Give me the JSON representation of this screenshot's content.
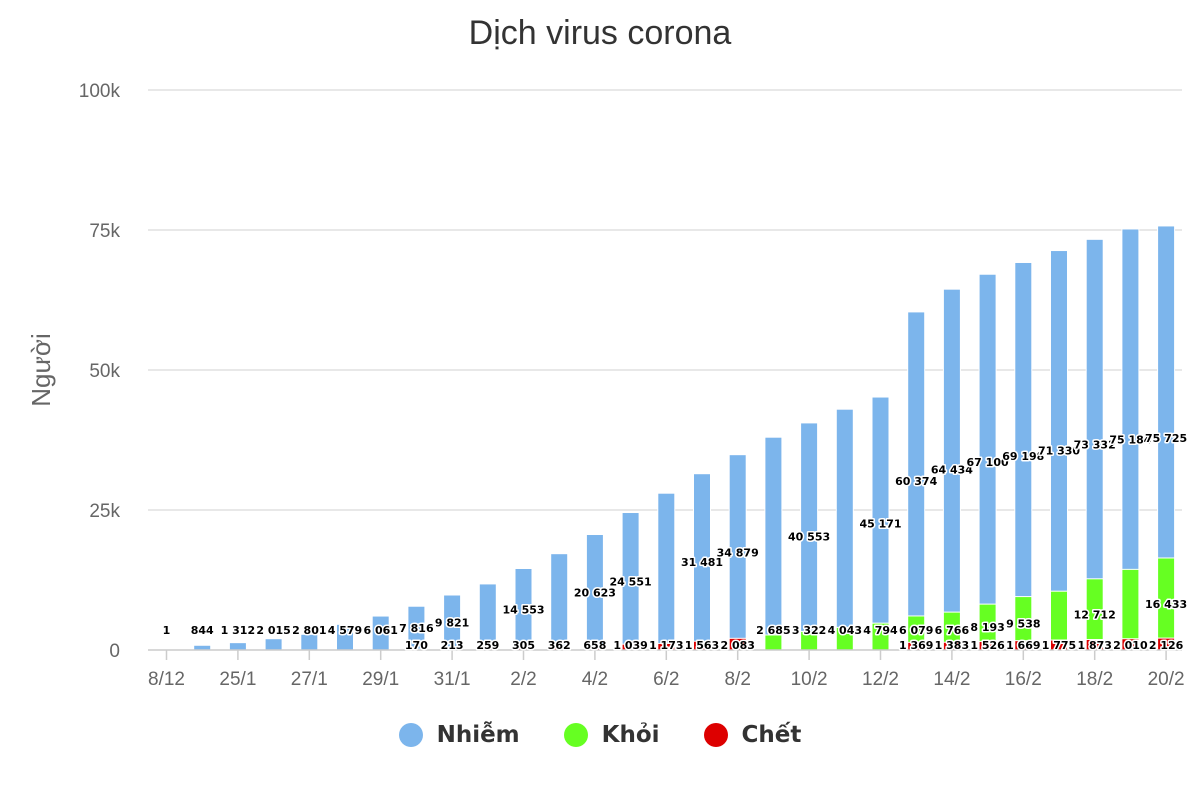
{
  "chart_data": {
    "type": "bar",
    "stacked": true,
    "title": "Dịch virus corona",
    "ylabel": "Người",
    "xlabel": "",
    "ylim": [
      0,
      100000
    ],
    "y_ticks": [
      {
        "value": 0,
        "label": "0"
      },
      {
        "value": 25000,
        "label": "25k"
      },
      {
        "value": 50000,
        "label": "50k"
      },
      {
        "value": 75000,
        "label": "75k"
      },
      {
        "value": 100000,
        "label": "100k"
      }
    ],
    "x_tick_labels": [
      "8/12",
      "25/1",
      "27/1",
      "29/1",
      "31/1",
      "2/2",
      "4/2",
      "6/2",
      "8/2",
      "10/2",
      "12/2",
      "14/2",
      "16/2",
      "18/2",
      "20/2"
    ],
    "legend_position": "bottom",
    "grid": true,
    "series": [
      {
        "name": "Nhiễm",
        "color": "#7cb5ec",
        "values": [
          1,
          844,
          1312,
          2015,
          2801,
          4579,
          6061,
          7816,
          9821,
          11800,
          14553,
          17200,
          20623,
          24551,
          28000,
          31481,
          34879,
          38000,
          40553,
          43000,
          45171,
          60374,
          64434,
          67100,
          69198,
          71330,
          73332,
          75184,
          75725
        ]
      },
      {
        "name": "Khỏi",
        "color": "#66ff22",
        "values": [
          0,
          0,
          0,
          0,
          0,
          0,
          0,
          0,
          0,
          0,
          0,
          0,
          0,
          0,
          0,
          0,
          0,
          2685,
          3322,
          4043,
          4794,
          6079,
          6766,
          8193,
          9538,
          10500,
          12712,
          14400,
          16433
        ]
      },
      {
        "name": "Chết",
        "color": "#dd0000",
        "values": [
          0,
          0,
          0,
          0,
          0,
          0,
          0,
          170,
          213,
          259,
          305,
          362,
          658,
          1039,
          1173,
          1563,
          2083,
          0,
          0,
          0,
          0,
          1369,
          1383,
          1526,
          1669,
          1775,
          1873,
          2010,
          2126
        ]
      }
    ],
    "data_labels": [
      {
        "i": 0,
        "series": 0,
        "text": "1"
      },
      {
        "i": 1,
        "series": 0,
        "text": "844"
      },
      {
        "i": 2,
        "series": 0,
        "text": "1 312"
      },
      {
        "i": 3,
        "series": 0,
        "text": "2 015"
      },
      {
        "i": 4,
        "series": 0,
        "text": "2 801"
      },
      {
        "i": 5,
        "series": 0,
        "text": "4 579"
      },
      {
        "i": 6,
        "series": 0,
        "text": "6 061"
      },
      {
        "i": 7,
        "series": 0,
        "text": "7 816"
      },
      {
        "i": 8,
        "series": 0,
        "text": "9 821"
      },
      {
        "i": 10,
        "series": 0,
        "text": "14 553"
      },
      {
        "i": 12,
        "series": 0,
        "text": "20 623"
      },
      {
        "i": 13,
        "series": 0,
        "text": "24 551"
      },
      {
        "i": 15,
        "series": 0,
        "text": "31 481"
      },
      {
        "i": 16,
        "series": 0,
        "text": "34 879"
      },
      {
        "i": 18,
        "series": 0,
        "text": "40 553"
      },
      {
        "i": 20,
        "series": 0,
        "text": "45 171"
      },
      {
        "i": 21,
        "series": 0,
        "text": "60 374"
      },
      {
        "i": 22,
        "series": 0,
        "text": "64 434"
      },
      {
        "i": 23,
        "series": 0,
        "text": "67 100"
      },
      {
        "i": 24,
        "series": 0,
        "text": "69 198"
      },
      {
        "i": 25,
        "series": 0,
        "text": "71 330"
      },
      {
        "i": 26,
        "series": 0,
        "text": "73 332"
      },
      {
        "i": 27,
        "series": 0,
        "text": "75 184"
      },
      {
        "i": 28,
        "series": 0,
        "text": "75 725"
      },
      {
        "i": 17,
        "series": 1,
        "text": "2 685"
      },
      {
        "i": 18,
        "series": 1,
        "text": "3 322"
      },
      {
        "i": 19,
        "series": 1,
        "text": "4 043"
      },
      {
        "i": 20,
        "series": 1,
        "text": "4 794"
      },
      {
        "i": 21,
        "series": 1,
        "text": "6 079"
      },
      {
        "i": 22,
        "series": 1,
        "text": "6 766"
      },
      {
        "i": 23,
        "series": 1,
        "text": "8 193"
      },
      {
        "i": 24,
        "series": 1,
        "text": "9 538"
      },
      {
        "i": 26,
        "series": 1,
        "text": "12 712"
      },
      {
        "i": 28,
        "series": 1,
        "text": "16 433"
      },
      {
        "i": 7,
        "series": 2,
        "text": "170"
      },
      {
        "i": 8,
        "series": 2,
        "text": "213"
      },
      {
        "i": 9,
        "series": 2,
        "text": "259"
      },
      {
        "i": 10,
        "series": 2,
        "text": "305"
      },
      {
        "i": 11,
        "series": 2,
        "text": "362"
      },
      {
        "i": 12,
        "series": 2,
        "text": "658"
      },
      {
        "i": 13,
        "series": 2,
        "text": "1 039"
      },
      {
        "i": 14,
        "series": 2,
        "text": "1 173"
      },
      {
        "i": 15,
        "series": 2,
        "text": "1 563"
      },
      {
        "i": 16,
        "series": 2,
        "text": "2 083"
      },
      {
        "i": 21,
        "series": 2,
        "text": "1 369"
      },
      {
        "i": 22,
        "series": 2,
        "text": "1 383"
      },
      {
        "i": 23,
        "series": 2,
        "text": "1 526"
      },
      {
        "i": 24,
        "series": 2,
        "text": "1 669"
      },
      {
        "i": 25,
        "series": 2,
        "text": "1 775"
      },
      {
        "i": 26,
        "series": 2,
        "text": "1 873"
      },
      {
        "i": 27,
        "series": 2,
        "text": "2 010"
      },
      {
        "i": 28,
        "series": 2,
        "text": "2 126"
      }
    ]
  }
}
